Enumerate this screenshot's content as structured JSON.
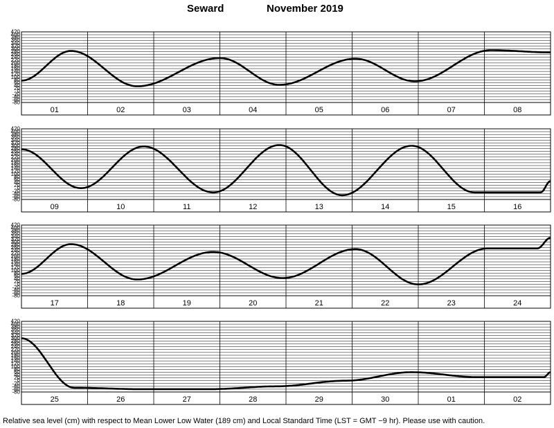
{
  "header": {
    "station": "Seward",
    "month_year": "November  2019"
  },
  "caption": "Relative sea level (cm) with respect to Mean Lower Low Water (189 cm) and Local Standard Time (LST = GMT −9 hr). Please use with caution.",
  "chart_data": [
    {
      "type": "line",
      "panel": "row-1",
      "days": [
        "01",
        "02",
        "03",
        "04",
        "05",
        "06",
        "07",
        "08"
      ],
      "ylim": [
        -80,
        420
      ],
      "y_ticks": [
        420,
        400,
        380,
        360,
        340,
        320,
        300,
        280,
        260,
        240,
        220,
        200,
        180,
        160,
        140,
        120,
        100,
        80,
        60,
        40,
        20,
        0,
        -20,
        -40,
        -60,
        -80
      ],
      "x": [
        0,
        0.75,
        1.75,
        3.0,
        3.9,
        5.05,
        5.95,
        7.1,
        8.0
      ],
      "y": [
        75,
        285,
        35,
        235,
        45,
        230,
        70,
        290,
        275
      ],
      "x_range": [
        0,
        8
      ]
    },
    {
      "type": "line",
      "panel": "row-2",
      "days": [
        "09",
        "10",
        "11",
        "12",
        "13",
        "14",
        "15",
        "16"
      ],
      "ylim": [
        -80,
        420
      ],
      "y_ticks": [
        420,
        400,
        380,
        360,
        340,
        320,
        300,
        280,
        260,
        240,
        220,
        200,
        180,
        160,
        140,
        120,
        100,
        80,
        60,
        40,
        20,
        0,
        -20,
        -40,
        -60,
        -80
      ],
      "x": [
        0,
        0.9,
        1.85,
        2.9,
        3.9,
        4.85,
        5.9,
        6.85,
        7.85,
        8.0
      ],
      "y": [
        275,
        0,
        295,
        -30,
        305,
        -50,
        300,
        -30,
        -30,
        50
      ],
      "x_range": [
        0,
        8
      ]
    },
    {
      "type": "line",
      "panel": "row-3",
      "days": [
        "17",
        "18",
        "19",
        "20",
        "21",
        "22",
        "23",
        "24"
      ],
      "ylim": [
        -80,
        420
      ],
      "y_ticks": [
        420,
        400,
        380,
        360,
        340,
        320,
        300,
        280,
        260,
        240,
        220,
        200,
        180,
        160,
        140,
        120,
        100,
        80,
        60,
        40,
        20,
        0,
        -20,
        -40,
        -60,
        -80
      ],
      "x": [
        0,
        0.75,
        1.75,
        2.9,
        3.95,
        5.05,
        6.0,
        7.05,
        7.8,
        8.0
      ],
      "y": [
        75,
        285,
        35,
        230,
        45,
        250,
        0,
        255,
        255,
        330
      ],
      "x_range": [
        0,
        8
      ]
    },
    {
      "type": "line",
      "panel": "row-4",
      "days": [
        "25",
        "26",
        "27",
        "28",
        "29",
        "30",
        "01",
        "02"
      ],
      "ylim": [
        -80,
        420
      ],
      "y_ticks": [
        420,
        400,
        380,
        360,
        340,
        320,
        300,
        280,
        260,
        240,
        220,
        200,
        180,
        160,
        140,
        120,
        100,
        80,
        60,
        40,
        20,
        0,
        -20,
        -40,
        -60,
        -80
      ],
      "x": [
        0,
        0.8,
        1.8,
        2.85,
        3.85,
        4.9,
        5.9,
        6.9,
        7.9,
        8.0
      ],
      "y": [
        300,
        -50,
        -60,
        -60,
        -40,
        0,
        60,
        25,
        25,
        60
      ],
      "x_range": [
        0,
        8
      ]
    }
  ]
}
